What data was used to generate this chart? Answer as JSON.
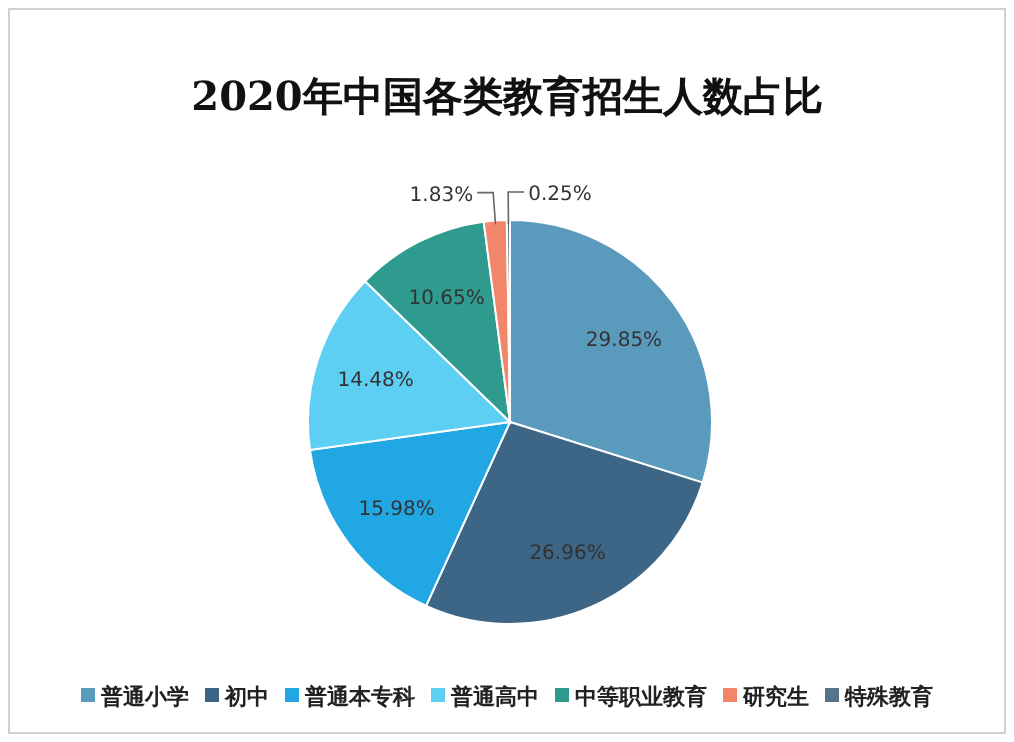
{
  "chart_data": {
    "type": "pie",
    "title": "2020年中国各类教育招生人数占比",
    "categories": [
      "普通小学",
      "初中",
      "普通本专科",
      "普通高中",
      "中等职业教育",
      "研究生",
      "特殊教育"
    ],
    "values": [
      29.85,
      26.96,
      15.98,
      14.48,
      10.65,
      1.83,
      0.25
    ],
    "value_labels": [
      "29.85%",
      "26.96%",
      "15.98%",
      "14.48%",
      "10.65%",
      "1.83%",
      "0.25%"
    ],
    "colors": [
      "#5a9bbd",
      "#3d6585",
      "#21a7e3",
      "#5ccff3",
      "#2f9b8f",
      "#f2866a",
      "#56748a"
    ],
    "legend": "bottom"
  }
}
